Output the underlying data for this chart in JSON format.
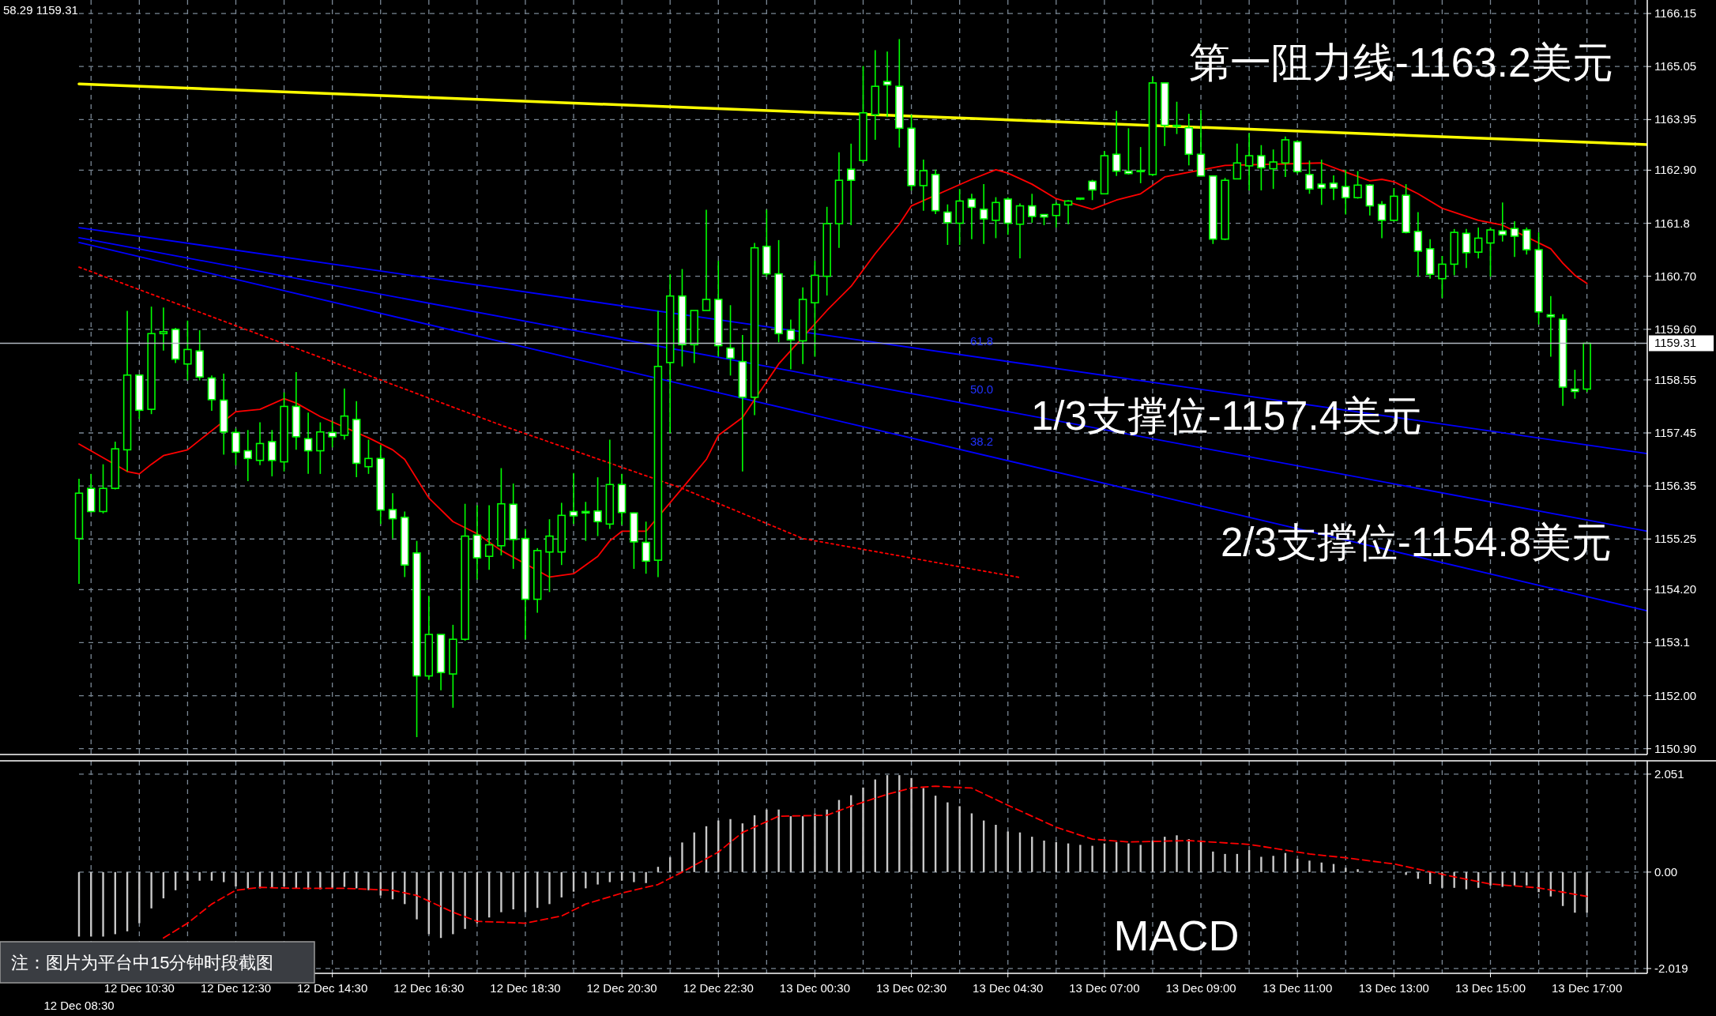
{
  "chart_data": [
    {
      "type": "candlestick",
      "color": "#00ff00",
      "categories": [
        null,
        null,
        null,
        null,
        null,
        null,
        null,
        null,
        null,
        null,
        null,
        null,
        null,
        null,
        null,
        null,
        null,
        null,
        null,
        null,
        null,
        null,
        null,
        null,
        null,
        null,
        null,
        null,
        null,
        null,
        null,
        null,
        null,
        null,
        null,
        null,
        null,
        null,
        null,
        null,
        null,
        null,
        null,
        null,
        null,
        null,
        null,
        null,
        null,
        null,
        null,
        null,
        null,
        null,
        null,
        null,
        null,
        null,
        null,
        null,
        null,
        null,
        null,
        null,
        null,
        null,
        null,
        null,
        null,
        null,
        null,
        null,
        null,
        null,
        null,
        null,
        null,
        null,
        null,
        null,
        null,
        null,
        null,
        null,
        null,
        null,
        null,
        null,
        null,
        null,
        null,
        null,
        null,
        null,
        null,
        null,
        null,
        null,
        null,
        null,
        null,
        null,
        null,
        null,
        null,
        null,
        null,
        null,
        null,
        null,
        null,
        null,
        null,
        null,
        null,
        null,
        null,
        null,
        null,
        null,
        null,
        null,
        null,
        null,
        null,
        null,
        null,
        null,
        null,
        null,
        null
      ],
      "ohlc": [
        [
          1155.26,
          1156.5,
          1154.32,
          1156.2
        ],
        [
          1156.3,
          1156.6,
          1155.8,
          1155.82
        ],
        [
          1155.82,
          1156.8,
          1155.78,
          1156.3
        ],
        [
          1156.3,
          1157.27,
          1156.28,
          1157.12
        ],
        [
          1157.1,
          1159.98,
          1156.65,
          1158.65
        ],
        [
          1158.65,
          1158.65,
          1157.74,
          1157.92
        ],
        [
          1157.94,
          1160.07,
          1157.84,
          1159.51
        ],
        [
          1159.51,
          1160.05,
          1159.16,
          1159.55
        ],
        [
          1159.6,
          1159.63,
          1158.9,
          1158.98
        ],
        [
          1158.88,
          1159.78,
          1158.54,
          1159.18
        ],
        [
          1159.15,
          1159.58,
          1158.54,
          1158.61
        ],
        [
          1158.59,
          1158.64,
          1157.91,
          1158.14
        ],
        [
          1158.13,
          1158.68,
          1157.0,
          1157.47
        ],
        [
          1157.46,
          1157.54,
          1156.78,
          1157.05
        ],
        [
          1157.08,
          1157.51,
          1156.45,
          1156.92
        ],
        [
          1156.88,
          1157.67,
          1156.78,
          1157.23
        ],
        [
          1157.27,
          1157.51,
          1156.55,
          1156.88
        ],
        [
          1156.85,
          1158.29,
          1156.65,
          1158.0
        ],
        [
          1158.0,
          1158.71,
          1157.1,
          1157.37
        ],
        [
          1157.33,
          1157.87,
          1156.6,
          1157.08
        ],
        [
          1157.08,
          1157.67,
          1156.6,
          1157.47
        ],
        [
          1157.46,
          1157.69,
          1157.15,
          1157.37
        ],
        [
          1157.4,
          1158.37,
          1157.31,
          1157.8
        ],
        [
          1157.73,
          1158.11,
          1156.53,
          1156.82
        ],
        [
          1156.75,
          1157.31,
          1156.6,
          1156.92
        ],
        [
          1156.92,
          1157.2,
          1155.56,
          1155.85
        ],
        [
          1155.86,
          1156.2,
          1155.26,
          1155.67
        ],
        [
          1155.7,
          1155.82,
          1154.46,
          1154.71
        ],
        [
          1154.96,
          1155.21,
          1151.14,
          1152.41
        ],
        [
          1152.41,
          1154.07,
          1152.33,
          1153.27
        ],
        [
          1153.27,
          1153.27,
          1152.11,
          1152.48
        ],
        [
          1152.45,
          1153.47,
          1151.75,
          1153.17
        ],
        [
          1153.17,
          1155.98,
          1153.14,
          1155.31
        ],
        [
          1155.33,
          1155.95,
          1154.41,
          1154.86
        ],
        [
          1154.89,
          1155.95,
          1154.61,
          1155.13
        ],
        [
          1155.11,
          1156.72,
          1154.91,
          1155.98
        ],
        [
          1155.97,
          1156.4,
          1154.63,
          1155.24
        ],
        [
          1155.26,
          1155.46,
          1153.17,
          1154.0
        ],
        [
          1154.0,
          1155.06,
          1153.72,
          1155.01
        ],
        [
          1154.98,
          1155.66,
          1154.15,
          1155.31
        ],
        [
          1154.98,
          1156.0,
          1154.71,
          1155.74
        ],
        [
          1155.82,
          1156.62,
          1155.56,
          1155.73
        ],
        [
          1155.82,
          1156.02,
          1155.21,
          1155.79
        ],
        [
          1155.83,
          1156.53,
          1155.31,
          1155.61
        ],
        [
          1155.56,
          1157.31,
          1155.46,
          1156.38
        ],
        [
          1156.38,
          1156.6,
          1155.54,
          1155.8
        ],
        [
          1155.79,
          1155.8,
          1154.63,
          1155.19
        ],
        [
          1155.18,
          1155.61,
          1154.53,
          1154.79
        ],
        [
          1154.81,
          1159.98,
          1154.46,
          1158.83
        ],
        [
          1158.91,
          1160.74,
          1157.44,
          1160.29
        ],
        [
          1160.29,
          1160.85,
          1158.83,
          1159.28
        ],
        [
          1159.28,
          1159.99,
          1158.9,
          1159.99
        ],
        [
          1159.99,
          1162.08,
          1159.99,
          1160.22
        ],
        [
          1160.22,
          1161.02,
          1159.03,
          1159.26
        ],
        [
          1159.21,
          1160.1,
          1158.64,
          1159.0
        ],
        [
          1158.93,
          1159.48,
          1156.65,
          1158.19
        ],
        [
          1158.19,
          1161.39,
          1157.82,
          1161.29
        ],
        [
          1161.32,
          1162.08,
          1160.69,
          1160.75
        ],
        [
          1160.75,
          1161.45,
          1159.33,
          1159.51
        ],
        [
          1159.58,
          1159.8,
          1158.77,
          1159.38
        ],
        [
          1159.36,
          1160.47,
          1158.88,
          1160.22
        ],
        [
          1160.15,
          1161.02,
          1159.03,
          1160.72
        ],
        [
          1160.7,
          1162.14,
          1160.3,
          1161.79
        ],
        [
          1161.79,
          1163.27,
          1161.29,
          1162.69
        ],
        [
          1162.92,
          1163.45,
          1161.76,
          1162.69
        ],
        [
          1163.1,
          1165.06,
          1163.05,
          1164.09
        ],
        [
          1164.05,
          1165.39,
          1163.53,
          1164.64
        ],
        [
          1164.74,
          1165.36,
          1164.0,
          1164.67
        ],
        [
          1164.64,
          1165.62,
          1163.37,
          1163.77
        ],
        [
          1163.77,
          1164.05,
          1162.48,
          1162.58
        ],
        [
          1162.58,
          1163.12,
          1162.06,
          1162.89
        ],
        [
          1162.81,
          1162.91,
          1161.99,
          1162.06
        ],
        [
          1162.03,
          1162.19,
          1161.35,
          1161.81
        ],
        [
          1161.8,
          1162.51,
          1161.35,
          1162.26
        ],
        [
          1162.3,
          1162.41,
          1161.47,
          1162.13
        ],
        [
          1162.09,
          1162.61,
          1161.37,
          1161.89
        ],
        [
          1161.86,
          1162.34,
          1161.49,
          1162.23
        ],
        [
          1162.3,
          1162.34,
          1161.56,
          1161.8
        ],
        [
          1161.78,
          1162.21,
          1161.07,
          1162.16
        ],
        [
          1162.16,
          1162.41,
          1161.81,
          1161.94
        ],
        [
          1161.98,
          1161.98,
          1161.76,
          1161.93
        ],
        [
          1161.96,
          1162.24,
          1161.71,
          1162.19
        ],
        [
          1162.18,
          1162.28,
          1161.78,
          1162.26
        ],
        [
          1162.3,
          1162.33,
          1162.28,
          1162.32
        ],
        [
          1162.67,
          1162.7,
          1162.28,
          1162.49
        ],
        [
          1162.41,
          1163.3,
          1162.41,
          1163.2
        ],
        [
          1163.23,
          1164.13,
          1162.78,
          1162.88
        ],
        [
          1162.88,
          1163.77,
          1162.81,
          1162.83
        ],
        [
          1162.89,
          1163.38,
          1162.63,
          1162.87
        ],
        [
          1162.81,
          1164.84,
          1162.78,
          1164.71
        ],
        [
          1164.71,
          1164.71,
          1163.4,
          1163.83
        ],
        [
          1163.83,
          1164.32,
          1163.65,
          1163.81
        ],
        [
          1163.78,
          1164.07,
          1163.0,
          1163.23
        ],
        [
          1163.23,
          1164.15,
          1162.78,
          1162.78
        ],
        [
          1162.78,
          1162.78,
          1161.37,
          1161.47
        ],
        [
          1161.47,
          1162.74,
          1161.45,
          1162.69
        ],
        [
          1162.72,
          1163.45,
          1162.71,
          1163.05
        ],
        [
          1162.99,
          1163.67,
          1162.48,
          1163.2
        ],
        [
          1163.2,
          1163.42,
          1162.48,
          1162.95
        ],
        [
          1162.93,
          1163.33,
          1162.51,
          1163.07
        ],
        [
          1163.05,
          1163.6,
          1162.76,
          1163.53
        ],
        [
          1163.49,
          1163.52,
          1162.83,
          1162.87
        ],
        [
          1162.81,
          1163.1,
          1162.41,
          1162.51
        ],
        [
          1162.61,
          1163.12,
          1162.18,
          1162.53
        ],
        [
          1162.63,
          1162.79,
          1162.28,
          1162.53
        ],
        [
          1162.56,
          1162.91,
          1161.98,
          1162.33
        ],
        [
          1162.33,
          1162.88,
          1162.31,
          1162.59
        ],
        [
          1162.59,
          1162.61,
          1161.96,
          1162.16
        ],
        [
          1162.19,
          1162.26,
          1161.49,
          1161.86
        ],
        [
          1161.86,
          1162.53,
          1161.84,
          1162.36
        ],
        [
          1162.38,
          1162.61,
          1161.59,
          1161.61
        ],
        [
          1161.63,
          1162.03,
          1160.69,
          1161.22
        ],
        [
          1161.27,
          1161.47,
          1160.65,
          1160.74
        ],
        [
          1160.65,
          1161.12,
          1160.25,
          1160.95
        ],
        [
          1160.95,
          1161.68,
          1160.72,
          1161.61
        ],
        [
          1161.59,
          1161.68,
          1160.87,
          1161.19
        ],
        [
          1161.2,
          1161.71,
          1161.07,
          1161.49
        ],
        [
          1161.39,
          1161.71,
          1160.69,
          1161.66
        ],
        [
          1161.64,
          1162.23,
          1161.42,
          1161.56
        ],
        [
          1161.69,
          1161.84,
          1161.1,
          1161.53
        ],
        [
          1161.66,
          1161.71,
          1161.15,
          1161.25
        ],
        [
          1161.25,
          1161.61,
          1159.7,
          1159.96
        ],
        [
          1159.9,
          1160.29,
          1159.03,
          1159.86
        ],
        [
          1159.81,
          1159.91,
          1158.01,
          1158.4
        ],
        [
          1158.36,
          1158.76,
          1158.16,
          1158.31
        ],
        [
          1158.36,
          1159.31,
          1158.3,
          1159.31
        ],
        null,
        null,
        null,
        null,
        null
      ],
      "series": [
        {
          "type": "line",
          "color": "#ffff00",
          "values": [
            1164.69,
            null,
            null,
            null,
            null,
            null,
            null,
            null,
            null,
            null,
            null,
            null,
            null,
            null,
            null,
            null,
            null,
            null,
            null,
            null,
            null,
            null,
            null,
            null,
            null,
            null,
            null,
            null,
            null,
            null,
            null,
            null,
            null,
            null,
            null,
            null,
            null,
            null,
            null,
            null,
            null,
            null,
            null,
            null,
            null,
            null,
            null,
            null,
            null,
            null,
            null,
            null,
            null,
            null,
            null,
            null,
            null,
            null,
            null,
            null,
            null,
            null,
            null,
            null,
            null,
            null,
            null,
            null,
            null,
            null,
            null,
            null,
            null,
            null,
            null,
            null,
            null,
            null,
            null,
            null,
            null,
            null,
            null,
            null,
            null,
            null,
            null,
            null,
            null,
            null,
            null,
            null,
            null,
            null,
            null,
            null,
            null,
            null,
            null,
            null,
            null,
            null,
            null,
            null,
            null,
            null,
            null,
            null,
            null,
            null,
            null,
            null,
            null,
            null,
            null,
            null,
            null,
            null,
            null,
            null,
            null,
            null,
            null,
            null,
            null,
            null,
            null,
            null,
            null,
            null,
            1163.43
          ]
        },
        {
          "type": "line",
          "color": "#0000ff",
          "values": [
            1161.71,
            null,
            null,
            null,
            null,
            null,
            null,
            null,
            null,
            null,
            null,
            null,
            null,
            null,
            null,
            null,
            null,
            null,
            null,
            null,
            null,
            null,
            null,
            null,
            null,
            null,
            null,
            null,
            null,
            null,
            null,
            null,
            null,
            null,
            null,
            null,
            null,
            null,
            null,
            null,
            null,
            null,
            null,
            null,
            null,
            null,
            null,
            null,
            null,
            null,
            null,
            null,
            null,
            null,
            null,
            null,
            null,
            null,
            null,
            null,
            null,
            null,
            null,
            null,
            null,
            null,
            null,
            null,
            null,
            null,
            null,
            null,
            null,
            null,
            null,
            null,
            null,
            null,
            null,
            null,
            null,
            null,
            null,
            null,
            null,
            null,
            null,
            null,
            null,
            null,
            null,
            null,
            null,
            null,
            null,
            null,
            null,
            null,
            null,
            null,
            null,
            null,
            null,
            null,
            null,
            null,
            null,
            null,
            null,
            null,
            null,
            null,
            null,
            null,
            null,
            null,
            null,
            null,
            null,
            null,
            null,
            null,
            null,
            null,
            null,
            null,
            null,
            null,
            null,
            null,
            1157.02
          ]
        },
        {
          "type": "line",
          "color": "#0000ff",
          "values": [
            1161.5,
            null,
            null,
            null,
            null,
            null,
            null,
            null,
            null,
            null,
            null,
            null,
            null,
            null,
            null,
            null,
            null,
            null,
            null,
            null,
            null,
            null,
            null,
            null,
            null,
            null,
            null,
            null,
            null,
            null,
            null,
            null,
            null,
            null,
            null,
            null,
            null,
            null,
            null,
            null,
            null,
            null,
            null,
            null,
            null,
            null,
            null,
            null,
            null,
            null,
            null,
            null,
            null,
            null,
            null,
            null,
            null,
            null,
            null,
            null,
            null,
            null,
            null,
            null,
            null,
            null,
            null,
            null,
            null,
            null,
            null,
            null,
            null,
            null,
            null,
            null,
            null,
            null,
            null,
            null,
            null,
            null,
            null,
            null,
            null,
            null,
            null,
            null,
            null,
            null,
            null,
            null,
            null,
            null,
            null,
            null,
            null,
            null,
            null,
            null,
            null,
            null,
            null,
            null,
            null,
            null,
            null,
            null,
            null,
            null,
            null,
            null,
            null,
            null,
            null,
            null,
            null,
            null,
            null,
            null,
            null,
            null,
            null,
            null,
            null,
            null,
            null,
            null,
            null,
            null,
            1155.41
          ]
        },
        {
          "type": "line",
          "color": "#0000ff",
          "values": [
            1161.4,
            null,
            null,
            null,
            null,
            null,
            null,
            null,
            null,
            null,
            null,
            null,
            null,
            null,
            null,
            null,
            null,
            null,
            null,
            null,
            null,
            null,
            null,
            null,
            null,
            null,
            null,
            null,
            null,
            null,
            null,
            null,
            null,
            null,
            null,
            null,
            null,
            null,
            null,
            null,
            null,
            null,
            null,
            null,
            null,
            null,
            null,
            null,
            null,
            null,
            null,
            null,
            null,
            null,
            null,
            null,
            null,
            null,
            null,
            null,
            null,
            null,
            null,
            null,
            null,
            null,
            null,
            null,
            null,
            null,
            null,
            null,
            null,
            null,
            null,
            null,
            null,
            null,
            null,
            null,
            null,
            null,
            null,
            null,
            null,
            null,
            null,
            null,
            null,
            null,
            null,
            null,
            null,
            null,
            null,
            null,
            null,
            null,
            null,
            null,
            null,
            null,
            null,
            null,
            null,
            null,
            null,
            null,
            null,
            null,
            null,
            null,
            null,
            null,
            null,
            null,
            null,
            null,
            null,
            null,
            null,
            null,
            null,
            null,
            null,
            null,
            null,
            null,
            null,
            null,
            1153.76
          ]
        },
        {
          "type": "line",
          "color": "#ff0000",
          "line_style": "dotted",
          "values": [
            1160.89,
            null,
            null,
            null,
            null,
            null,
            null,
            null,
            null,
            null,
            null,
            null,
            null,
            null,
            null,
            null,
            null,
            1159.3,
            null,
            null,
            null,
            null,
            null,
            null,
            null,
            null,
            null,
            null,
            null,
            null,
            null,
            null,
            null,
            null,
            null,
            1157.61,
            null,
            null,
            null,
            null,
            null,
            null,
            null,
            null,
            null,
            null,
            null,
            null,
            null,
            null,
            1156.3,
            null,
            null,
            null,
            null,
            null,
            null,
            null,
            null,
            null,
            1155.26,
            null,
            null,
            null,
            null,
            null,
            null,
            null,
            null,
            null,
            null,
            null,
            null,
            null,
            null,
            null,
            null,
            null,
            1154.45,
            null,
            null,
            null,
            null,
            null,
            null,
            null,
            null,
            null,
            null,
            null,
            null,
            null,
            null,
            null,
            null,
            null,
            null,
            null,
            null,
            null,
            null,
            null,
            null,
            null,
            null,
            null,
            null,
            null,
            null,
            null,
            null,
            null,
            null,
            null,
            null,
            null,
            null,
            null,
            null,
            null,
            null,
            null,
            null,
            null,
            null,
            null,
            null,
            null,
            null,
            null,
            null
          ]
        },
        {
          "type": "line",
          "color": "#ff0000",
          "values": [
            1157.22,
            null,
            null,
            null,
            1156.65,
            1156.6,
            1156.8,
            1156.98,
            null,
            1157.1,
            1157.3,
            null,
            null,
            1157.89,
            null,
            1157.94,
            null,
            1158.16,
            1158.07,
            null,
            1157.79,
            null,
            null,
            null,
            1157.35,
            null,
            1157.1,
            1156.9,
            null,
            1156.1,
            null,
            1155.61,
            null,
            1155.36,
            null,
            1155.01,
            null,
            null,
            null,
            1154.46,
            null,
            1154.53,
            1154.71,
            1154.89,
            1155.21,
            1155.41,
            null,
            1155.41,
            null,
            null,
            1156.3,
            null,
            1156.9,
            1157.4,
            null,
            1157.77,
            null,
            null,
            1158.88,
            null,
            null,
            null,
            1159.99,
            null,
            1160.49,
            null,
            1161.17,
            null,
            1161.78,
            1162.16,
            null,
            null,
            null,
            null,
            1162.71,
            null,
            1162.91,
            1162.84,
            null,
            1162.61,
            null,
            1162.31,
            null,
            null,
            1162.09,
            null,
            1162.28,
            null,
            1162.41,
            null,
            1162.76,
            null,
            null,
            null,
            null,
            1163.0,
            null,
            null,
            null,
            null,
            null,
            null,
            null,
            1163.05,
            null,
            1162.86,
            null,
            1162.68,
            1162.71,
            1162.66,
            null,
            1162.41,
            null,
            1162.11,
            null,
            null,
            1161.86,
            null,
            1161.76,
            null,
            null,
            null,
            1161.27,
            1160.97,
            1160.72,
            1160.55,
            null,
            null,
            null,
            null,
            null
          ]
        }
      ],
      "ref_lines": [
        {
          "axis": "y",
          "value": 1159.31,
          "label": "1159.31",
          "color": "#b0b8c0"
        }
      ],
      "annotations": [
        "58.29 1159.31",
        "第一阻力线-1163.2美元",
        "1/3支撑位-1157.4美元",
        "2/3支撑位-1154.8美元",
        "61.8",
        "50.0",
        "38.2"
      ],
      "ylim": [
        1150.78,
        1166.43
      ],
      "yticks": [
        1166.15,
        1165.05,
        1163.95,
        {
          "value": 1162.9,
          "label": "1162.90"
        },
        1161.8,
        {
          "value": 1160.7,
          "label": "1160.70"
        },
        {
          "value": 1159.6,
          "label": "1159.60"
        },
        1158.55,
        1157.45,
        1156.35,
        1155.25,
        {
          "value": 1154.2,
          "label": "1154.20"
        },
        1153.1,
        {
          "value": 1152,
          "label": "1152.00"
        },
        {
          "value": 1150.9,
          "label": "1150.90"
        }
      ],
      "grid": true
    },
    {
      "type": "bar",
      "categories": [
        "12 Dec 08:30",
        null,
        null,
        null,
        null,
        "12 Dec 10:30",
        null,
        null,
        null,
        null,
        null,
        null,
        null,
        "12 Dec 12:30",
        null,
        null,
        null,
        null,
        null,
        null,
        null,
        "12 Dec 14:30",
        null,
        null,
        null,
        null,
        null,
        null,
        null,
        "12 Dec 16:30",
        null,
        null,
        null,
        null,
        null,
        null,
        null,
        "12 Dec 18:30",
        null,
        null,
        null,
        null,
        null,
        null,
        null,
        "12 Dec 20:30",
        null,
        null,
        null,
        null,
        null,
        null,
        null,
        "12 Dec 22:30",
        null,
        null,
        null,
        null,
        null,
        null,
        null,
        "13 Dec 00:30",
        null,
        null,
        null,
        null,
        null,
        null,
        null,
        "13 Dec 02:30",
        null,
        null,
        null,
        null,
        null,
        null,
        null,
        "13 Dec 04:30",
        null,
        null,
        null,
        null,
        null,
        null,
        null,
        "13 Dec 07:00",
        null,
        null,
        null,
        null,
        null,
        null,
        null,
        "13 Dec 09:00",
        null,
        null,
        null,
        null,
        null,
        null,
        null,
        "13 Dec 11:00",
        null,
        null,
        null,
        null,
        null,
        null,
        null,
        "13 Dec 13:00",
        null,
        null,
        null,
        null,
        null,
        null,
        null,
        "13 Dec 15:00",
        null,
        null,
        null,
        null,
        null,
        null,
        null,
        "13 Dec 17:00",
        null,
        null,
        null,
        null,
        null
      ],
      "series": [
        {
          "type": "bar",
          "color": "#c8c8c8",
          "values": [
            -1.35,
            -1.35,
            -1.35,
            -1.3,
            -1.24,
            -1.07,
            -0.76,
            -0.55,
            -0.38,
            -0.18,
            -0.18,
            -0.18,
            -0.21,
            -0.3,
            -0.34,
            -0.34,
            -0.32,
            -0.3,
            -0.34,
            -0.36,
            -0.36,
            -0.33,
            -0.31,
            -0.34,
            -0.38,
            -0.49,
            -0.57,
            -0.67,
            -0.99,
            -1.3,
            -1.38,
            -1.3,
            -1.19,
            -1.07,
            -0.95,
            -0.84,
            -0.78,
            -0.84,
            -0.75,
            -0.67,
            -0.53,
            -0.41,
            -0.34,
            -0.26,
            -0.21,
            -0.18,
            -0.21,
            -0.23,
            0.11,
            0.31,
            0.62,
            0.83,
            0.96,
            1.08,
            1.11,
            1.02,
            1.19,
            1.31,
            1.31,
            1.17,
            1.17,
            1.23,
            1.31,
            1.51,
            1.61,
            1.77,
            1.94,
            2.03,
            2.03,
            1.97,
            1.76,
            1.6,
            1.46,
            1.38,
            1.23,
            1.08,
            0.99,
            0.85,
            0.83,
            0.74,
            0.66,
            0.63,
            0.6,
            0.57,
            0.55,
            0.6,
            0.63,
            0.6,
            0.57,
            0.66,
            0.74,
            0.77,
            0.69,
            0.66,
            0.43,
            0.38,
            0.38,
            0.46,
            0.32,
            0.34,
            0.4,
            0.28,
            0.24,
            0.2,
            0.17,
            0.09,
            0.06,
            0.02,
            0.01,
            null,
            -0.06,
            -0.14,
            -0.25,
            -0.33,
            -0.33,
            -0.36,
            -0.33,
            -0.28,
            -0.31,
            -0.28,
            -0.28,
            -0.42,
            -0.51,
            -0.71,
            -0.85,
            -0.85,
            null,
            null,
            null,
            null,
            null
          ]
        },
        {
          "type": "line",
          "color": "#ff0000",
          "line_style": "dashed",
          "values": [
            null,
            null,
            null,
            null,
            null,
            null,
            null,
            -1.38,
            null,
            -1.07,
            null,
            -0.67,
            null,
            -0.38,
            null,
            -0.32,
            null,
            null,
            -0.34,
            null,
            null,
            null,
            -0.34,
            null,
            null,
            null,
            -0.38,
            null,
            -0.49,
            null,
            null,
            -0.84,
            null,
            -1.03,
            null,
            null,
            null,
            -1.07,
            null,
            null,
            -0.92,
            null,
            -0.67,
            null,
            null,
            -0.44,
            null,
            null,
            -0.26,
            null,
            0.0,
            null,
            null,
            0.42,
            null,
            0.83,
            null,
            null,
            1.17,
            null,
            null,
            null,
            1.19,
            null,
            1.38,
            null,
            null,
            1.63,
            null,
            1.76,
            null,
            1.8,
            null,
            null,
            1.76,
            null,
            null,
            1.4,
            null,
            null,
            null,
            0.94,
            null,
            null,
            0.69,
            null,
            null,
            0.63,
            null,
            null,
            null,
            null,
            0.66,
            null,
            null,
            null,
            null,
            0.58,
            null,
            null,
            null,
            null,
            0.38,
            null,
            null,
            0.3,
            null,
            null,
            null,
            0.17,
            null,
            0.06,
            null,
            null,
            -0.1,
            null,
            null,
            -0.25,
            null,
            null,
            null,
            -0.33,
            null,
            -0.42,
            null,
            -0.51,
            null,
            null,
            null,
            null,
            null
          ]
        }
      ],
      "annotations": [
        "MACD",
        "注：图片为平台中15分钟时段截图"
      ],
      "ylim": [
        -2.12,
        2.33
      ],
      "yticks": [
        2.051,
        {
          "value": 0,
          "label": "0.00"
        },
        {
          "value": -2.019,
          "label": "-2.019"
        }
      ],
      "grid": true
    }
  ]
}
